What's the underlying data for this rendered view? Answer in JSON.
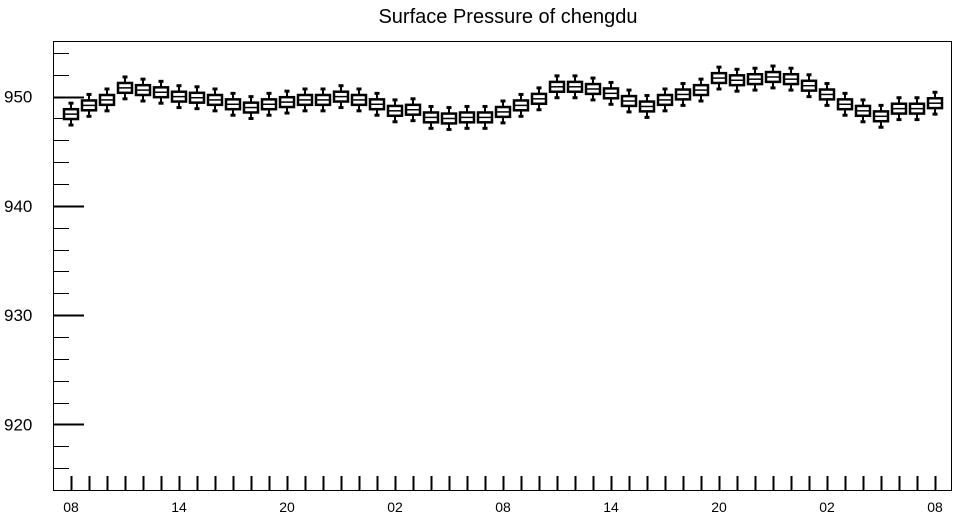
{
  "chart_data": {
    "type": "box",
    "title": "Surface Pressure of chengdu",
    "xlabel": "",
    "ylabel": "",
    "ylim": [
      914.0,
      955.0
    ],
    "y_major_ticks": [
      920,
      930,
      940,
      950
    ],
    "y_minor_step": 2,
    "x_ticks": [
      {
        "label": "08",
        "index": 0
      },
      {
        "label": "14",
        "index": 6
      },
      {
        "label": "20",
        "index": 12
      },
      {
        "label": "02",
        "index": 18
      },
      {
        "label": "08",
        "index": 24
      },
      {
        "label": "14",
        "index": 30
      },
      {
        "label": "20",
        "index": 36
      },
      {
        "label": "02",
        "index": 42
      },
      {
        "label": "08",
        "index": 48
      }
    ],
    "grid": false,
    "legend": "none",
    "colors": {
      "box_fill": "#ffffff",
      "box_stroke": "#000000"
    },
    "medians": [
      948.4,
      949.2,
      949.7,
      950.8,
      950.6,
      950.4,
      950.0,
      949.9,
      949.7,
      949.3,
      949.0,
      949.3,
      949.5,
      949.7,
      949.7,
      950.0,
      949.7,
      949.3,
      948.7,
      948.8,
      948.1,
      948.0,
      948.1,
      948.1,
      948.6,
      949.2,
      949.8,
      950.9,
      950.9,
      950.7,
      950.3,
      949.6,
      949.1,
      949.7,
      950.2,
      950.6,
      951.7,
      951.5,
      951.6,
      951.8,
      951.6,
      951.0,
      950.2,
      949.3,
      948.7,
      948.2,
      948.9,
      948.9,
      949.4
    ],
    "whisker_spread": 1.0,
    "box_half_height": 0.45
  }
}
